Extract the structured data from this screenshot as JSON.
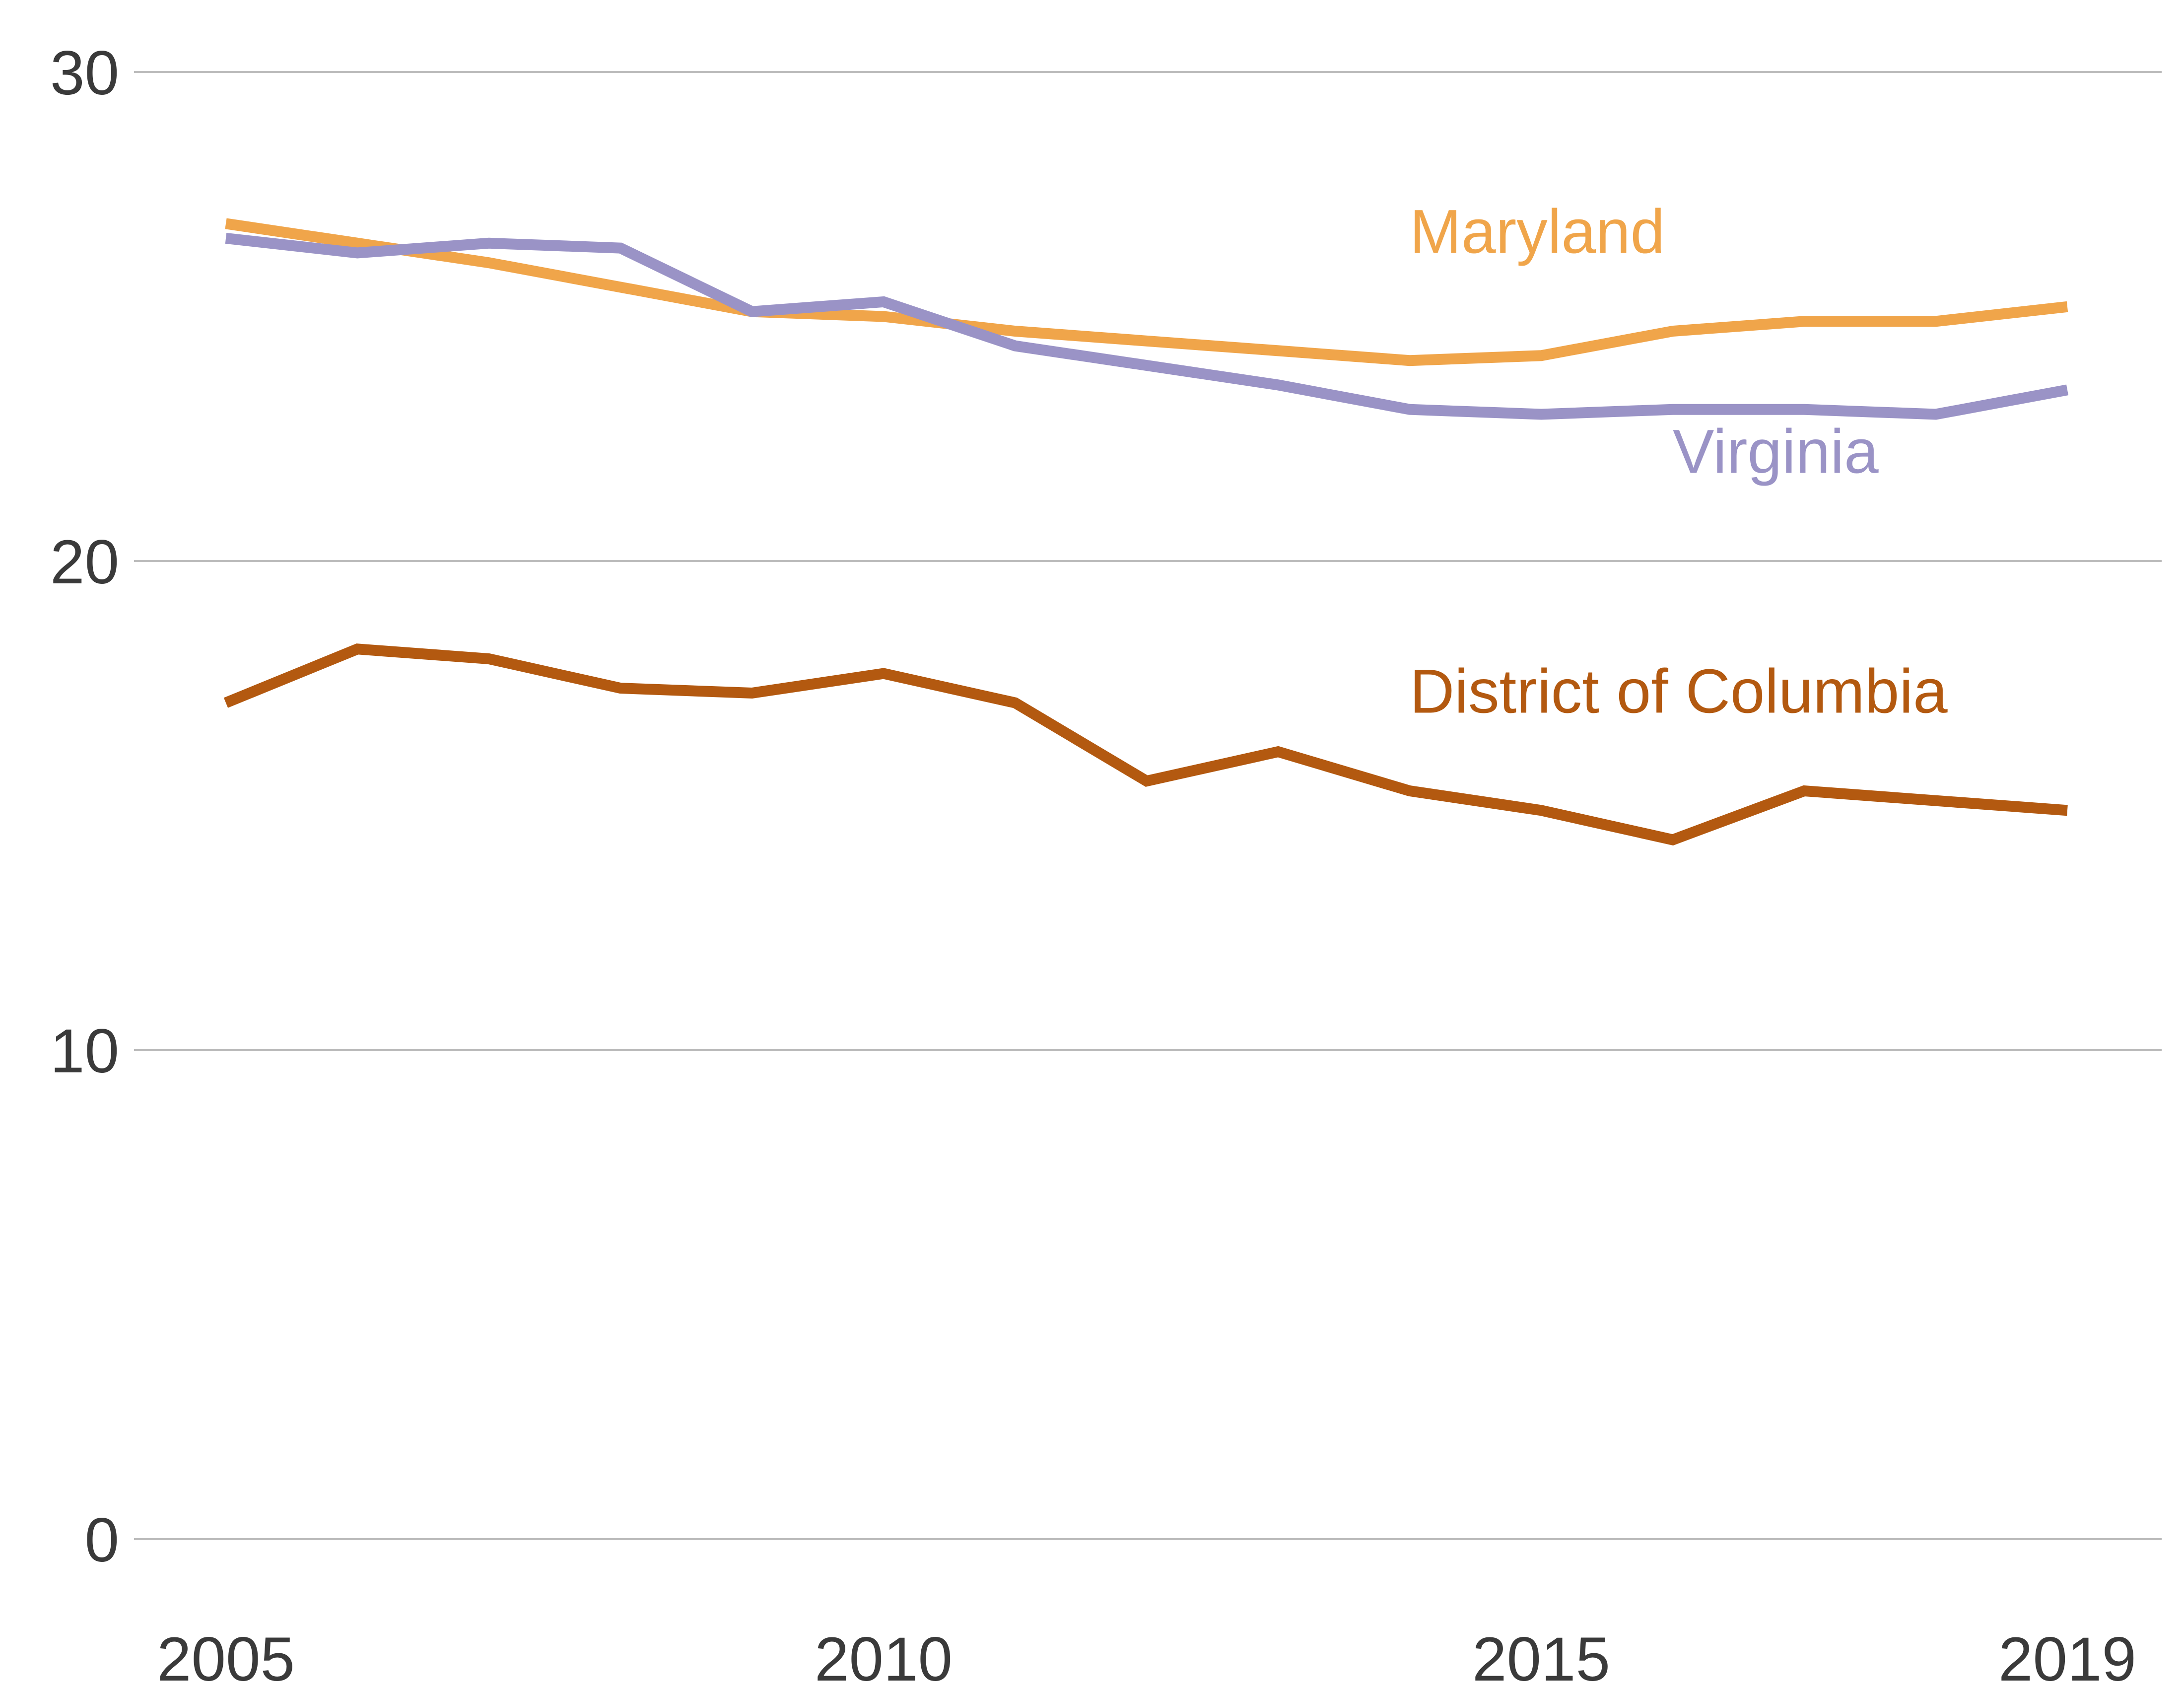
{
  "chart_data": {
    "type": "line",
    "title": "",
    "xlabel": "",
    "ylabel": "",
    "xlim": [
      2005,
      2019
    ],
    "ylim": [
      0,
      30
    ],
    "grid": "horizontal",
    "legend": "direct-labels",
    "x_ticks": [
      2005,
      2010,
      2015,
      2019
    ],
    "y_ticks": [
      0,
      10,
      20,
      30
    ],
    "x_tick_labels": [
      "2005",
      "2010",
      "2015",
      "2019"
    ],
    "y_tick_labels": [
      "0",
      "10",
      "20",
      "30"
    ],
    "x": [
      2005,
      2006,
      2007,
      2008,
      2009,
      2010,
      2011,
      2012,
      2013,
      2014,
      2015,
      2016,
      2017,
      2018,
      2019
    ],
    "series": [
      {
        "name": "Maryland",
        "color": "#f0a54a",
        "values": [
          26.9,
          26.5,
          26.1,
          25.6,
          25.1,
          25.0,
          24.7,
          24.5,
          24.3,
          24.1,
          24.2,
          24.7,
          24.9,
          24.9,
          25.2
        ],
        "label_anchor": [
          2014,
          26.3
        ]
      },
      {
        "name": "Virginia",
        "color": "#9a93c6",
        "values": [
          26.6,
          26.3,
          26.5,
          26.4,
          25.1,
          25.3,
          24.4,
          24.0,
          23.6,
          23.1,
          23.0,
          23.1,
          23.1,
          23.0,
          23.5
        ],
        "label_anchor": [
          2016,
          21.8
        ]
      },
      {
        "name": "District of Columbia",
        "color": "#b35910",
        "values": [
          17.1,
          18.2,
          18.0,
          17.4,
          17.3,
          17.7,
          17.1,
          15.5,
          16.1,
          15.3,
          14.9,
          14.3,
          15.3,
          15.1,
          14.9
        ],
        "label_anchor": [
          2014,
          16.9
        ]
      }
    ]
  }
}
